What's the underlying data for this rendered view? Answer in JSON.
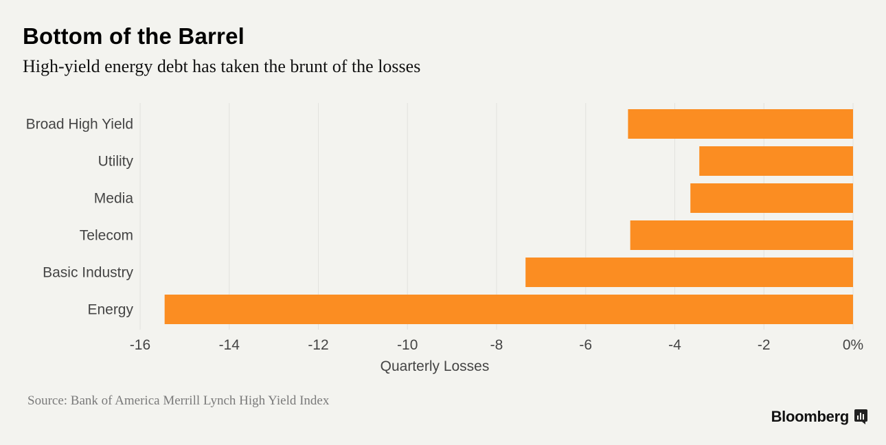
{
  "header": {
    "title": "Bottom of the Barrel",
    "subtitle": "High-yield energy debt has taken the brunt of the losses"
  },
  "footer": {
    "source": "Source: Bank of America Merrill Lynch High Yield Index",
    "brand": "Bloomberg",
    "brand_icon": "bloomberg-chart-icon"
  },
  "colors": {
    "bar": "#fb8d22",
    "background": "#f3f3ef",
    "grid": "#e2e2de",
    "axis_text": "#444444"
  },
  "chart_data": {
    "type": "bar",
    "orientation": "horizontal",
    "title": "Bottom of the Barrel",
    "subtitle": "High-yield energy debt has taken the brunt of the losses",
    "categories": [
      "Broad High Yield",
      "Utility",
      "Media",
      "Telecom",
      "Basic Industry",
      "Energy"
    ],
    "values": [
      -5.05,
      -3.45,
      -3.65,
      -5.0,
      -7.35,
      -15.45
    ],
    "xlabel": "Quarterly Losses",
    "ylabel": "",
    "xlim": [
      -16,
      0
    ],
    "xticks": [
      -16,
      -14,
      -12,
      -10,
      -8,
      -6,
      -4,
      -2,
      0
    ],
    "xtick_labels": [
      "-16",
      "-14",
      "-12",
      "-10",
      "-8",
      "-6",
      "-4",
      "-2",
      "0%"
    ],
    "grid": true,
    "legend": "none"
  }
}
